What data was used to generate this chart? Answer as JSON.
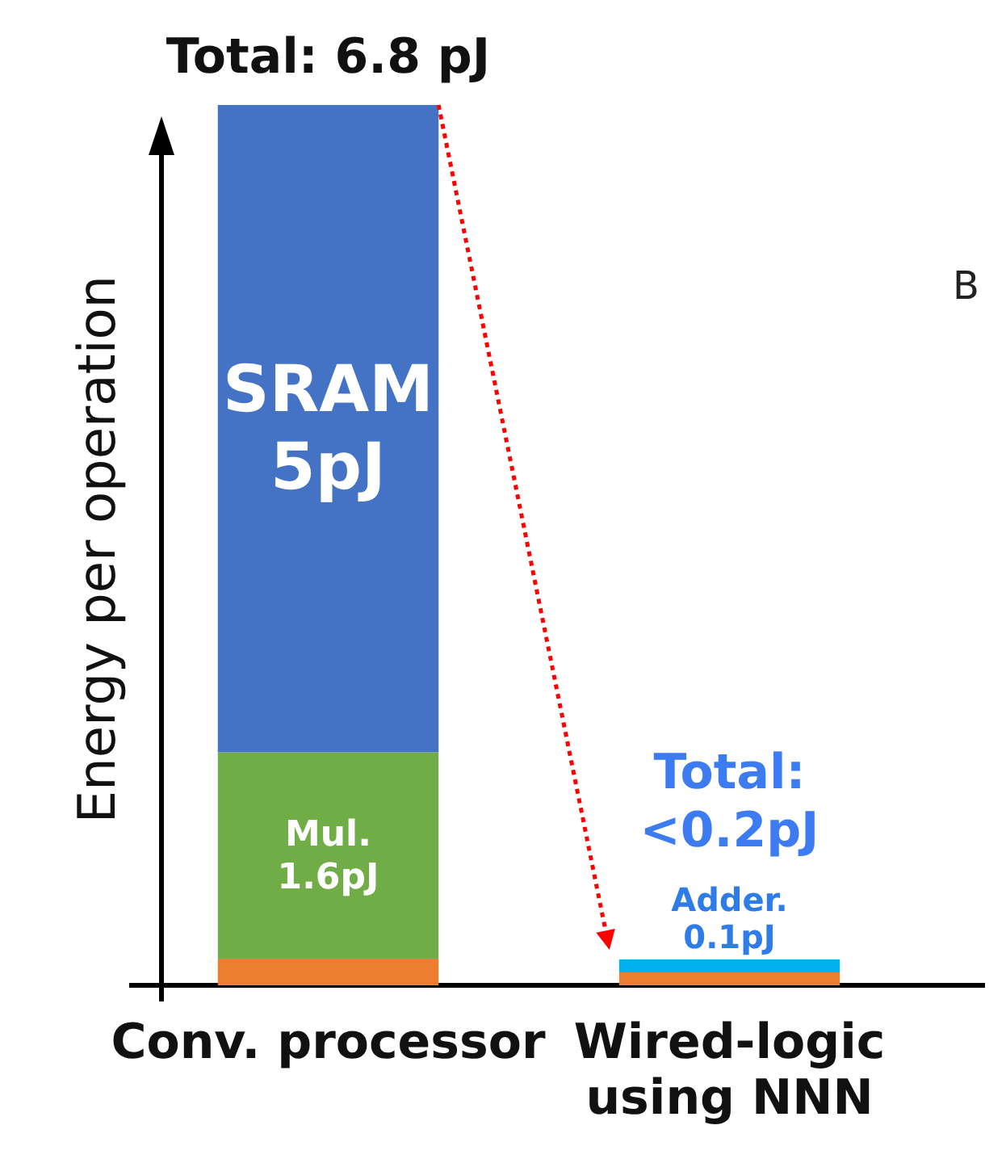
{
  "chart_data": {
    "type": "bar",
    "stacked": true,
    "ylabel": "Energy per operation",
    "categories": [
      "Conv. processor",
      "Wired-logic\nusing NNN"
    ],
    "series": [
      {
        "color": "#ed7d31",
        "values": [
          0.2,
          0.1
        ]
      },
      {
        "color": "#70ad47",
        "values": [
          1.6,
          null
        ],
        "value_labels": [
          "Mul.\n1.6pJ",
          null
        ]
      },
      {
        "color": "#00b0f0",
        "values": [
          null,
          0.1
        ],
        "value_labels": [
          null,
          "Adder.\n0.1pJ"
        ]
      },
      {
        "color": "#4472c4",
        "values": [
          5,
          null
        ],
        "value_labels": [
          "SRAM\n5pJ",
          null
        ]
      }
    ],
    "totals": [
      "Total: 6.8 pJ",
      "Total:\n<0.2pJ"
    ],
    "annotations": [
      "B"
    ]
  }
}
